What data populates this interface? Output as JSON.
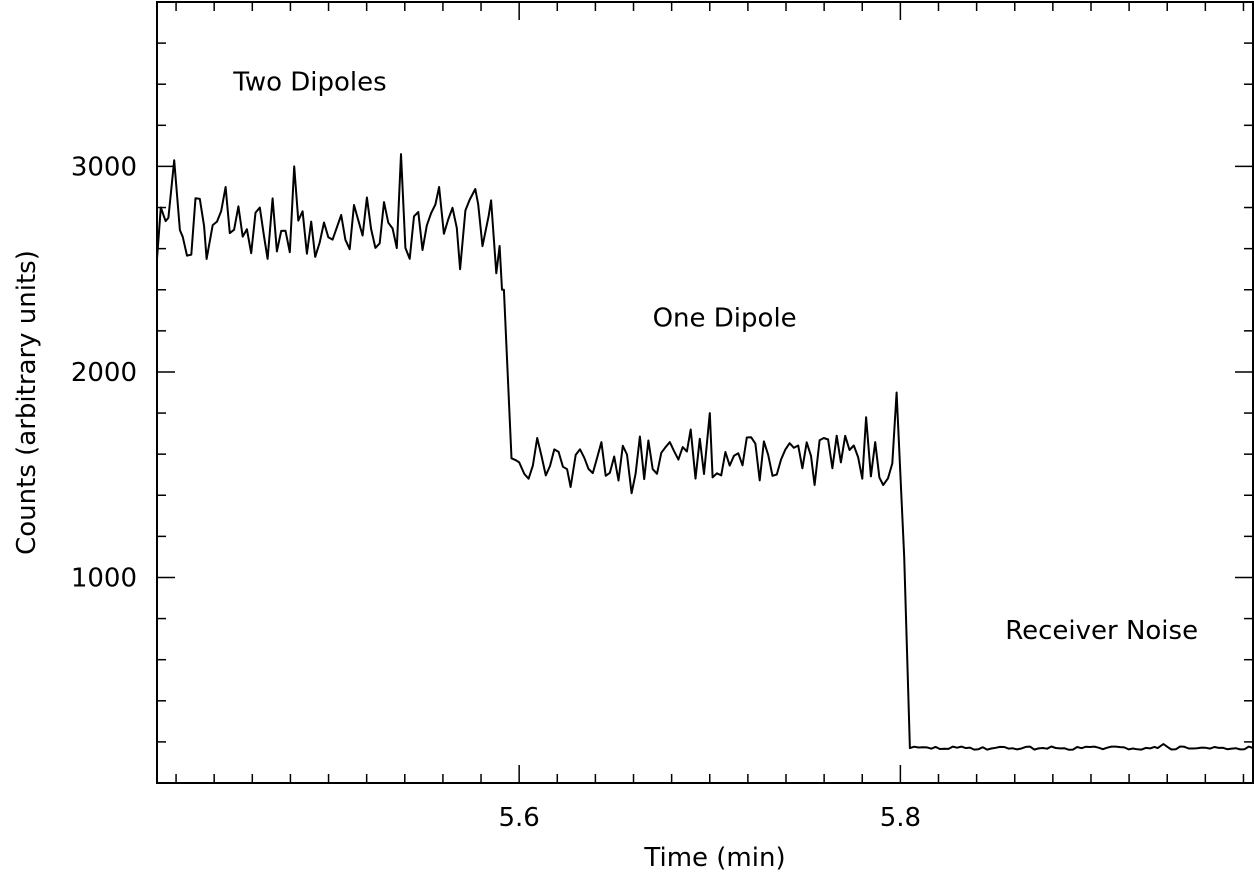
{
  "chart_data": {
    "type": "line",
    "title": "",
    "xlabel": "Time (min)",
    "ylabel": "Counts (arbitrary units)",
    "xlim": [
      5.41,
      5.985
    ],
    "ylim": [
      0,
      3800
    ],
    "x_major_ticks": [
      5.6,
      5.8
    ],
    "x_tick_labels": [
      "5.6",
      "5.8"
    ],
    "x_minor_step": 0.02,
    "y_major_ticks": [
      1000,
      2000,
      3000
    ],
    "y_tick_labels": [
      "1000",
      "2000",
      "3000"
    ],
    "y_minor_step": 200,
    "grid": false,
    "line_color": "#000000",
    "annotations": [
      {
        "text": "Two Dipoles",
        "x": 5.45,
        "y": 3370
      },
      {
        "text": "One Dipole",
        "x": 5.67,
        "y": 2220
      },
      {
        "text": "Receiver Noise",
        "x": 5.855,
        "y": 700
      }
    ],
    "series": [
      {
        "segments": [
          {
            "x_start": 5.41,
            "x_end": 5.592,
            "level": 2700,
            "amplitude": 150,
            "seed": 7,
            "points": [
              [
                5.41,
                2550
              ],
              [
                5.412,
                2800
              ],
              [
                5.416,
                2750
              ],
              [
                5.419,
                3030
              ],
              [
                5.422,
                2690
              ],
              [
                5.436,
                2550
              ],
              [
                5.446,
                2900
              ],
              [
                5.468,
                2550
              ],
              [
                5.482,
                3000
              ],
              [
                5.493,
                2560
              ],
              [
                5.538,
                3060
              ],
              [
                5.558,
                2900
              ],
              [
                5.569,
                2500
              ],
              [
                5.577,
                2890
              ],
              [
                5.584,
                2760
              ],
              [
                5.588,
                2480
              ],
              [
                5.591,
                2400
              ]
            ]
          },
          {
            "x_start": 5.596,
            "x_end": 5.798,
            "level": 1580,
            "amplitude": 110,
            "seed": 13,
            "points": [
              [
                5.596,
                1580
              ],
              [
                5.6,
                1560
              ],
              [
                5.627,
                1440
              ],
              [
                5.659,
                1410
              ],
              [
                5.69,
                1720
              ],
              [
                5.7,
                1800
              ],
              [
                5.755,
                1450
              ],
              [
                5.782,
                1780
              ],
              [
                5.791,
                1450
              ],
              [
                5.798,
                1900
              ]
            ]
          },
          {
            "x_start": 5.805,
            "x_end": 5.985,
            "level": 170,
            "amplitude": 8,
            "seed": 29,
            "points": [
              [
                5.805,
                170
              ],
              [
                5.935,
                170
              ],
              [
                5.938,
                190
              ],
              [
                5.941,
                170
              ],
              [
                5.985,
                170
              ]
            ]
          }
        ],
        "transitions": [
          [
            5.592,
            2400,
            5.596,
            1580
          ],
          [
            5.798,
            1900,
            5.802,
            1100
          ],
          [
            5.802,
            1100,
            5.805,
            170
          ]
        ]
      }
    ]
  }
}
